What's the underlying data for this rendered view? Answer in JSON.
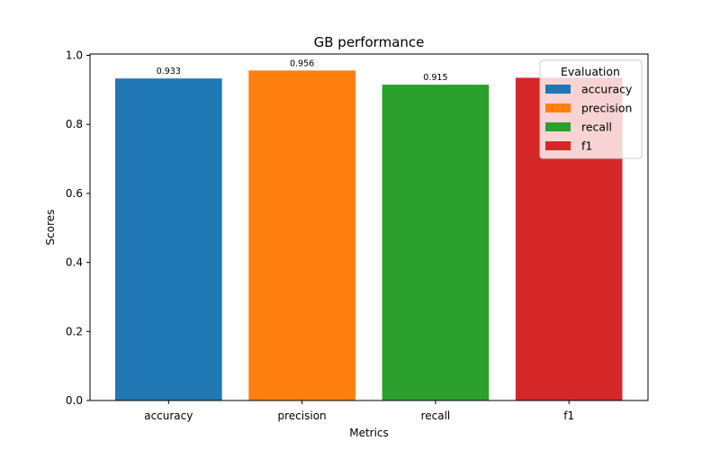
{
  "chart_data": {
    "type": "bar",
    "title": "GB performance",
    "xlabel": "Metrics",
    "ylabel": "Scores",
    "categories": [
      "accuracy",
      "precision",
      "recall",
      "f1"
    ],
    "values": [
      0.933,
      0.956,
      0.915,
      0.935
    ],
    "data_labels": [
      "0.933",
      "0.956",
      "0.915",
      ""
    ],
    "colors": [
      "#1f77b4",
      "#ff7f0e",
      "#2ca02c",
      "#d62728"
    ],
    "ylim": [
      0,
      1.0
    ],
    "yticks": [
      0.0,
      0.2,
      0.4,
      0.6,
      0.8,
      1.0
    ],
    "ytick_labels": [
      "0.0",
      "0.2",
      "0.4",
      "0.6",
      "0.8",
      "1.0"
    ],
    "grid": false,
    "legend": {
      "title": "Evaluation",
      "placement": "top-right",
      "entries": [
        "accuracy",
        "precision",
        "recall",
        "f1"
      ]
    }
  }
}
